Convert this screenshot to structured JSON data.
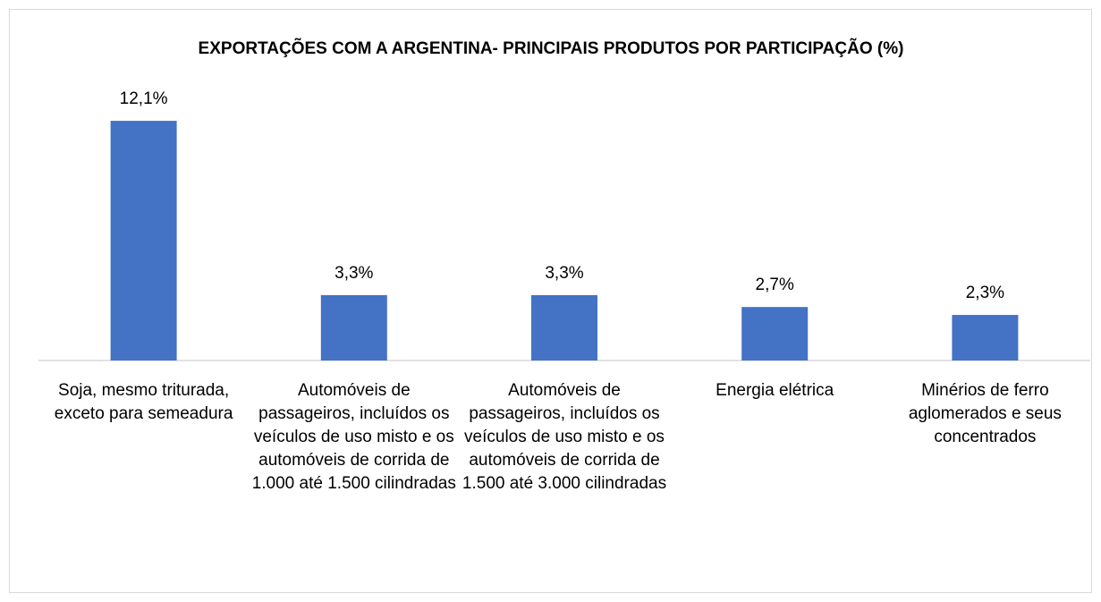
{
  "chart_data": {
    "type": "bar",
    "title": "EXPORTAÇÕES COM A ARGENTINA- PRINCIPAIS PRODUTOS POR PARTICIPAÇÃO (%)",
    "categories": [
      "Soja, mesmo triturada, exceto para semeadura",
      "Automóveis de passageiros, incluídos os veículos de uso misto e os automóveis de corrida de 1.000 até 1.500 cilindradas",
      "Automóveis de passageiros, incluídos os veículos de uso misto e os automóveis de corrida de 1.500 até 3.000 cilindradas",
      "Energia elétrica",
      "Minérios de ferro aglomerados e seus concentrados"
    ],
    "values": [
      12.1,
      3.3,
      3.3,
      2.7,
      2.3
    ],
    "value_labels": [
      "12,1%",
      "3,3%",
      "3,3%",
      "2,7%",
      "2,3%"
    ],
    "color": "#4472c4",
    "ylim": [
      0,
      14
    ]
  }
}
